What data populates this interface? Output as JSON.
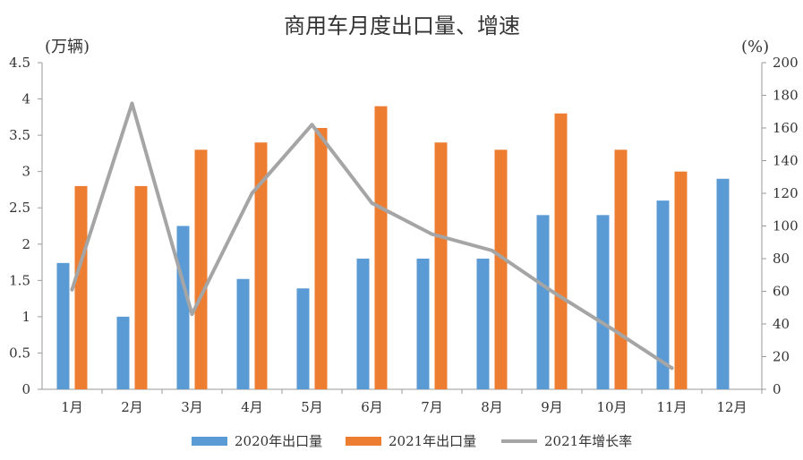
{
  "chart_data": {
    "type": "bar",
    "title": "商用车月度出口量、增速",
    "y_left_unit": "(万辆)",
    "y_right_unit": "(%)",
    "categories": [
      "1月",
      "2月",
      "3月",
      "4月",
      "5月",
      "6月",
      "7月",
      "8月",
      "9月",
      "10月",
      "11月",
      "12月"
    ],
    "series": [
      {
        "name": "2020年出口量",
        "type": "bar",
        "axis": "left",
        "color": "#5B9BD5",
        "values": [
          1.74,
          1.0,
          2.25,
          1.52,
          1.39,
          1.8,
          1.8,
          1.8,
          2.4,
          2.4,
          2.6,
          2.9
        ]
      },
      {
        "name": "2021年出口量",
        "type": "bar",
        "axis": "left",
        "color": "#ED7D31",
        "values": [
          2.8,
          2.8,
          3.3,
          3.4,
          3.6,
          3.9,
          3.4,
          3.3,
          3.8,
          3.3,
          3.0,
          null
        ]
      },
      {
        "name": "2021年增长率",
        "type": "line",
        "axis": "right",
        "color": "#A5A5A5",
        "values": [
          61,
          175,
          46,
          120,
          162,
          114,
          95,
          85,
          60,
          37,
          13,
          null
        ]
      }
    ],
    "y_left_ticks": [
      "0",
      "0.5",
      "1",
      "1.5",
      "2",
      "2.5",
      "3",
      "3.5",
      "4",
      "4.5"
    ],
    "y_left_range": [
      0,
      4.5
    ],
    "y_right_ticks": [
      "0",
      "20",
      "40",
      "60",
      "80",
      "100",
      "120",
      "140",
      "160",
      "180",
      "200"
    ],
    "y_right_range": [
      0,
      200
    ],
    "legend_position": "bottom",
    "grid": false
  }
}
